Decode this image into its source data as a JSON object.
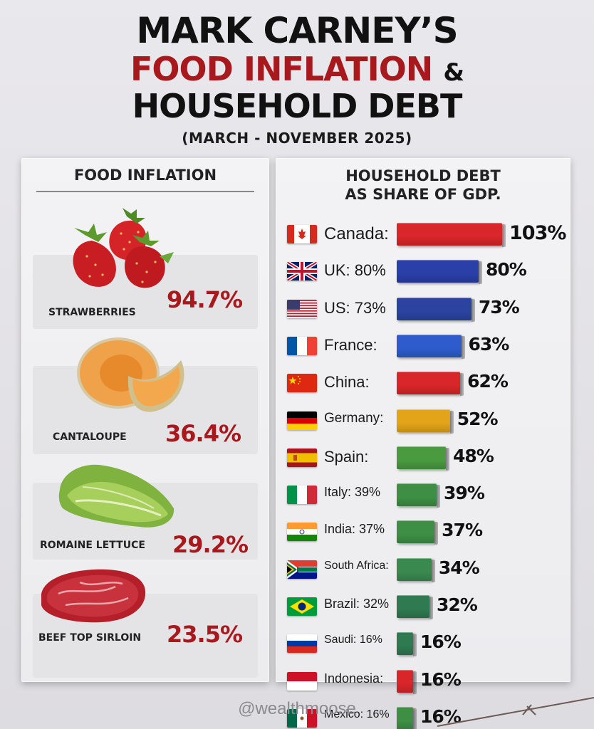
{
  "title": {
    "line1": "MARK CARNEY’S",
    "line2": "FOOD INFLATION",
    "amp": "&",
    "line3": "HOUSEHOLD DEBT",
    "subtitle": "(MARCH - NOVEMBER 2025)"
  },
  "left_panel": {
    "heading": "FOOD INFLATION",
    "items": [
      {
        "name": "STRAWBERRIES",
        "value": "94.7%",
        "icon": "strawberries-icon"
      },
      {
        "name": "CANTALOUPE",
        "value": "36.4%",
        "icon": "cantaloupe-icon"
      },
      {
        "name": "ROMAINE LETTUCE",
        "value": "29.2%",
        "icon": "lettuce-icon"
      },
      {
        "name": "BEEF TOP SIRLOIN",
        "value": "23.5%",
        "icon": "steak-icon"
      }
    ]
  },
  "right_panel": {
    "heading_line1": "HOUSEHOLD DEBT",
    "heading_line2": "AS SHARE OF GDP."
  },
  "chart_data": {
    "type": "bar",
    "orientation": "horizontal",
    "title": "HOUSEHOLD DEBT AS SHARE OF GDP.",
    "categories": [
      "Canada:",
      "UK: 80%",
      "US: 73%",
      "France:",
      "China:",
      "Germany:",
      "Spain:",
      "Italy: 39%",
      "India: 37%",
      "South Africa:",
      "Brazil: 32%",
      "Saudi: 16%",
      "Indonesia:",
      "Mexico: 16%"
    ],
    "values": [
      103,
      80,
      73,
      63,
      62,
      52,
      48,
      39,
      37,
      34,
      32,
      16,
      16,
      16
    ],
    "value_labels": [
      "103%",
      "80%",
      "73%",
      "63%",
      "62%",
      "52%",
      "48%",
      "39%",
      "37%",
      "34%",
      "32%",
      "16%",
      "16%",
      "16%"
    ],
    "colors": [
      "#d8262a",
      "#2a3fa8",
      "#2c44a0",
      "#2f5ccc",
      "#d8262a",
      "#e3a41a",
      "#4a9a40",
      "#3e8f45",
      "#3e8f45",
      "#3a8a50",
      "#2f7a50",
      "#2f7a50",
      "#d8262a",
      "#3e8f45"
    ],
    "flags": [
      "canada-flag-icon",
      "uk-flag-icon",
      "us-flag-icon",
      "france-flag-icon",
      "china-flag-icon",
      "germany-flag-icon",
      "spain-flag-icon",
      "italy-flag-icon",
      "india-flag-icon",
      "south-africa-flag-icon",
      "brazil-flag-icon",
      "russia-flag-icon",
      "indonesia-flag-icon",
      "mexico-flag-icon"
    ],
    "xlim": [
      0,
      103
    ]
  },
  "watermark": "@wealthmoose"
}
